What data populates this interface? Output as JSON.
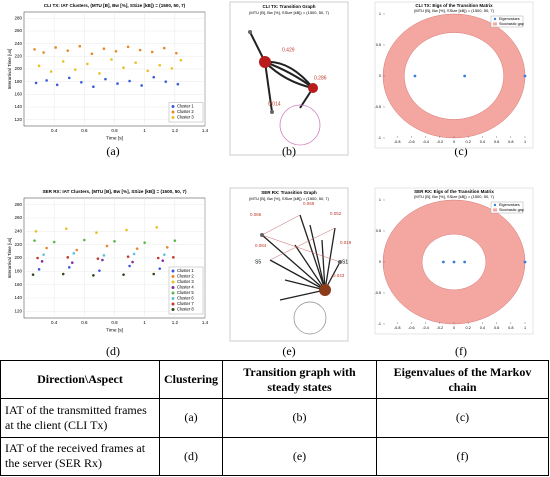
{
  "chart_data": [
    {
      "type": "scatter",
      "title": "CLI TX: IAT Clusters, (MTU [B], Bw [%], SSize [kB]) = (1500, 50, 7)",
      "x_label": "Time [s]",
      "y_label": "Interarrival Time [us]",
      "xlim": [
        0.2,
        1.4
      ],
      "xticks": [
        0.4,
        0.6,
        0.8,
        1,
        1.2,
        1.4
      ],
      "ylim": [
        110,
        290
      ],
      "yticks": [
        120,
        140,
        160,
        180,
        200,
        220,
        240,
        260,
        280
      ],
      "grid": true,
      "legend": "lower right",
      "series": [
        {
          "name": "Cluster 1",
          "color": "#3b5bdb",
          "x": [
            0.28,
            0.35,
            0.42,
            0.5,
            0.58,
            0.66,
            0.74,
            0.82,
            0.9,
            0.98,
            1.06,
            1.14,
            1.22
          ],
          "values": [
            178,
            182,
            175,
            186,
            179,
            172,
            184,
            177,
            181,
            174,
            187,
            180,
            176
          ]
        },
        {
          "name": "Cluster 2",
          "color": "#e8862a",
          "x": [
            0.27,
            0.33,
            0.41,
            0.49,
            0.57,
            0.65,
            0.73,
            0.81,
            0.89,
            0.97,
            1.05,
            1.13,
            1.21
          ],
          "values": [
            231,
            226,
            234,
            229,
            236,
            224,
            232,
            228,
            235,
            230,
            227,
            233,
            225
          ]
        },
        {
          "name": "Cluster 3",
          "color": "#e8c020",
          "x": [
            0.3,
            0.38,
            0.46,
            0.54,
            0.62,
            0.7,
            0.78,
            0.86,
            0.94,
            1.02,
            1.1,
            1.18,
            1.24
          ],
          "values": [
            205,
            196,
            212,
            199,
            208,
            193,
            215,
            202,
            210,
            197,
            206,
            201,
            214
          ]
        }
      ]
    },
    {
      "type": "scatter",
      "title": "SER RX: IAT Clusters, (MTU [B], Bw [%], SSize [kB]) = (1500, 50, 7)",
      "x_label": "Time [s]",
      "y_label": "Interarrival Time [us]",
      "xlim": [
        0.2,
        1.4
      ],
      "xticks": [
        0.4,
        0.6,
        0.8,
        1,
        1.2,
        1.4
      ],
      "ylim": [
        110,
        290
      ],
      "yticks": [
        120,
        140,
        160,
        180,
        200,
        220,
        240,
        260,
        280
      ],
      "grid": true,
      "legend": "lower right",
      "series": [
        {
          "name": "Cluster 1",
          "color": "#3b5bdb",
          "x": [
            0.3,
            0.5,
            0.7,
            0.9,
            1.1
          ],
          "values": [
            183,
            186,
            181,
            188,
            184
          ]
        },
        {
          "name": "Cluster 2",
          "color": "#e8862a",
          "x": [
            0.35,
            0.55,
            0.75,
            0.95,
            1.15
          ],
          "values": [
            215,
            212,
            218,
            214,
            216
          ]
        },
        {
          "name": "Cluster 3",
          "color": "#e8c020",
          "x": [
            0.28,
            0.48,
            0.68,
            0.88,
            1.08
          ],
          "values": [
            240,
            244,
            238,
            242,
            246
          ]
        },
        {
          "name": "Cluster 4",
          "color": "#7b2fa0",
          "x": [
            0.32,
            0.52,
            0.72,
            0.92,
            1.12
          ],
          "values": [
            195,
            193,
            197,
            194,
            196
          ]
        },
        {
          "name": "Cluster 5",
          "color": "#58b84a",
          "x": [
            0.27,
            0.4,
            0.6,
            0.8,
            1.0,
            1.2
          ],
          "values": [
            226,
            224,
            227,
            225,
            223,
            226
          ]
        },
        {
          "name": "Cluster 6",
          "color": "#5bc0de",
          "x": [
            0.33,
            0.53,
            0.73,
            0.93,
            1.13
          ],
          "values": [
            205,
            207,
            204,
            206,
            205
          ]
        },
        {
          "name": "Cluster 7",
          "color": "#c0392b",
          "x": [
            0.29,
            0.49,
            0.69,
            0.89,
            1.09,
            1.19
          ],
          "values": [
            200,
            201,
            199,
            202,
            200,
            201
          ]
        },
        {
          "name": "Cluster 8",
          "color": "#2d4a1e",
          "x": [
            0.26,
            0.46,
            0.66,
            0.86,
            1.06,
            1.24
          ],
          "values": [
            175,
            176,
            174,
            175,
            176,
            174
          ]
        }
      ]
    },
    {
      "type": "eigen",
      "title": "CLI TX: Eigs of the Transition Matrix",
      "subtitle": "(MTU [B], Bw [%], SSize [kB]) = (1500, 50, 7)",
      "xlim": [
        -1,
        1
      ],
      "xticks": [
        -0.8,
        -0.6,
        -0.4,
        -0.2,
        0,
        0.2,
        0.4,
        0.6,
        0.8,
        1
      ],
      "ylim": [
        -1,
        1
      ],
      "yticks": [
        -1,
        -0.5,
        0,
        0.5,
        1
      ],
      "legend": "upper right",
      "stochastic_gap": [
        0.7,
        1
      ],
      "series": [
        {
          "name": "Eigenvalues",
          "color": "#3b7dd8",
          "x": [
            -0.55,
            0.15,
            1
          ],
          "values": [
            0,
            0,
            0
          ]
        },
        {
          "name": "Stochastic gap",
          "color": "#f4a6a0"
        }
      ]
    },
    {
      "type": "eigen",
      "title": "SER RX: Eigs of the Transition Matrix",
      "subtitle": "(MTU [B], Bw [%], SSize [kB]) = (1500, 50, 7)",
      "xlim": [
        -1,
        1
      ],
      "xticks": [
        -0.8,
        -0.6,
        -0.4,
        -0.2,
        0,
        0.2,
        0.4,
        0.6,
        0.8,
        1
      ],
      "ylim": [
        -1,
        1
      ],
      "yticks": [
        -1,
        -0.5,
        0,
        0.5,
        1
      ],
      "legend": "upper right",
      "stochastic_gap": [
        0.45,
        1
      ],
      "series": [
        {
          "name": "Eigenvalues",
          "color": "#3b7dd8",
          "x": [
            -0.15,
            0,
            0.15,
            1
          ],
          "values": [
            0,
            0,
            0,
            0
          ]
        },
        {
          "name": "Stochastic gap",
          "color": "#f4a6a0"
        }
      ]
    }
  ],
  "graphs": [
    {
      "title": "CLI TX: Transition Graph",
      "subtitle": "(MTU [B], Bw [%], SSize [kB]) = (1500, 50, 7)",
      "edge_labels": [
        "0.429",
        "0.286",
        "0.014"
      ]
    },
    {
      "title": "SER RX: Transition Graph",
      "subtitle": "(MTU [B], Bw [%], SSize [kB]) = (1500, 50, 7)",
      "edge_labels": [
        "0.066",
        "0.069",
        "0.052",
        "0.084",
        "0.019",
        "0.043"
      ],
      "node_labels": [
        "S5",
        "S1"
      ]
    }
  ],
  "captions": [
    "(a)",
    "(b)",
    "(c)",
    "(d)",
    "(e)",
    "(f)"
  ],
  "table": {
    "header": [
      "Direction\\Aspect",
      "Clustering",
      "Transition graph with steady states",
      "Eigenvalues of the Markov chain"
    ],
    "rows": [
      [
        "IAT of the transmitted frames at the client (CLI Tx)",
        "(a)",
        "(b)",
        "(c)"
      ],
      [
        "IAT of the received frames at the server (SER Rx)",
        "(d)",
        "(e)",
        "(f)"
      ]
    ]
  }
}
